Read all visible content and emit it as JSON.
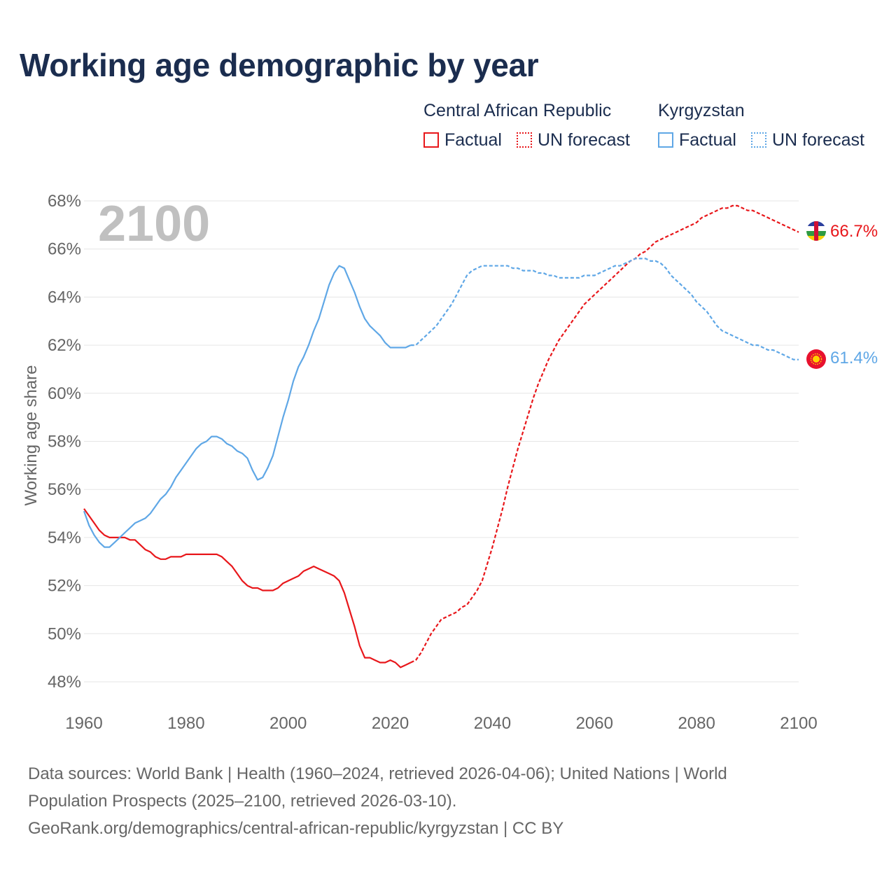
{
  "title": "Working age demographic by year",
  "legend": {
    "groups": [
      {
        "country": "Central African Republic",
        "color": "#e8171b",
        "factual_label": "Factual",
        "forecast_label": "UN forecast"
      },
      {
        "country": "Kyrgyzstan",
        "color": "#5fa7e6",
        "factual_label": "Factual",
        "forecast_label": "UN forecast"
      }
    ]
  },
  "year_overlay": "2100",
  "source": {
    "line1": "Data sources: World Bank | Health (1960–2024, retrieved 2026-04-06); United Nations | World",
    "line2": "Population Prospects (2025–2100, retrieved 2026-03-10).",
    "line3": "GeoRank.org/demographics/central-african-republic/kyrgyzstan | CC BY"
  },
  "chart_data": {
    "type": "line",
    "title": "Working age demographic by year",
    "xlabel": "",
    "ylabel": "Working age share",
    "xlim": [
      1960,
      2100
    ],
    "ylim": [
      47,
      69
    ],
    "x_ticks": [
      1960,
      1980,
      2000,
      2020,
      2040,
      2060,
      2080,
      2100
    ],
    "y_ticks": [
      48,
      50,
      52,
      54,
      56,
      58,
      60,
      62,
      64,
      66,
      68
    ],
    "x_tick_labels": [
      "1960",
      "1980",
      "2000",
      "2020",
      "2040",
      "2060",
      "2080",
      "2100"
    ],
    "y_tick_labels": [
      "48%",
      "50%",
      "52%",
      "54%",
      "56%",
      "58%",
      "60%",
      "62%",
      "64%",
      "66%",
      "68%"
    ],
    "factual_until": 2024,
    "series": [
      {
        "name": "Central African Republic",
        "color": "#e8171b",
        "end_label": "66.7%",
        "points": [
          [
            1960,
            55.2
          ],
          [
            1961,
            54.9
          ],
          [
            1962,
            54.6
          ],
          [
            1963,
            54.3
          ],
          [
            1964,
            54.1
          ],
          [
            1965,
            54.0
          ],
          [
            1966,
            54.0
          ],
          [
            1967,
            54.0
          ],
          [
            1968,
            54.0
          ],
          [
            1969,
            53.9
          ],
          [
            1970,
            53.9
          ],
          [
            1971,
            53.7
          ],
          [
            1972,
            53.5
          ],
          [
            1973,
            53.4
          ],
          [
            1974,
            53.2
          ],
          [
            1975,
            53.1
          ],
          [
            1976,
            53.1
          ],
          [
            1977,
            53.2
          ],
          [
            1978,
            53.2
          ],
          [
            1979,
            53.2
          ],
          [
            1980,
            53.3
          ],
          [
            1981,
            53.3
          ],
          [
            1982,
            53.3
          ],
          [
            1983,
            53.3
          ],
          [
            1984,
            53.3
          ],
          [
            1985,
            53.3
          ],
          [
            1986,
            53.3
          ],
          [
            1987,
            53.2
          ],
          [
            1988,
            53.0
          ],
          [
            1989,
            52.8
          ],
          [
            1990,
            52.5
          ],
          [
            1991,
            52.2
          ],
          [
            1992,
            52.0
          ],
          [
            1993,
            51.9
          ],
          [
            1994,
            51.9
          ],
          [
            1995,
            51.8
          ],
          [
            1996,
            51.8
          ],
          [
            1997,
            51.8
          ],
          [
            1998,
            51.9
          ],
          [
            1999,
            52.1
          ],
          [
            2000,
            52.2
          ],
          [
            2001,
            52.3
          ],
          [
            2002,
            52.4
          ],
          [
            2003,
            52.6
          ],
          [
            2004,
            52.7
          ],
          [
            2005,
            52.8
          ],
          [
            2006,
            52.7
          ],
          [
            2007,
            52.6
          ],
          [
            2008,
            52.5
          ],
          [
            2009,
            52.4
          ],
          [
            2010,
            52.2
          ],
          [
            2011,
            51.7
          ],
          [
            2012,
            51.0
          ],
          [
            2013,
            50.3
          ],
          [
            2014,
            49.5
          ],
          [
            2015,
            49.0
          ],
          [
            2016,
            49.0
          ],
          [
            2017,
            48.9
          ],
          [
            2018,
            48.8
          ],
          [
            2019,
            48.8
          ],
          [
            2020,
            48.9
          ],
          [
            2021,
            48.8
          ],
          [
            2022,
            48.6
          ],
          [
            2023,
            48.7
          ],
          [
            2024,
            48.8
          ],
          [
            2025,
            48.9
          ],
          [
            2026,
            49.2
          ],
          [
            2027,
            49.6
          ],
          [
            2028,
            50.0
          ],
          [
            2029,
            50.3
          ],
          [
            2030,
            50.6
          ],
          [
            2031,
            50.7
          ],
          [
            2032,
            50.8
          ],
          [
            2033,
            50.9
          ],
          [
            2034,
            51.1
          ],
          [
            2035,
            51.2
          ],
          [
            2036,
            51.5
          ],
          [
            2037,
            51.8
          ],
          [
            2038,
            52.2
          ],
          [
            2039,
            52.9
          ],
          [
            2040,
            53.6
          ],
          [
            2041,
            54.4
          ],
          [
            2042,
            55.2
          ],
          [
            2043,
            56.1
          ],
          [
            2044,
            56.9
          ],
          [
            2045,
            57.7
          ],
          [
            2046,
            58.4
          ],
          [
            2047,
            59.1
          ],
          [
            2048,
            59.8
          ],
          [
            2049,
            60.4
          ],
          [
            2050,
            60.9
          ],
          [
            2051,
            61.4
          ],
          [
            2052,
            61.8
          ],
          [
            2053,
            62.2
          ],
          [
            2054,
            62.5
          ],
          [
            2055,
            62.8
          ],
          [
            2056,
            63.1
          ],
          [
            2057,
            63.4
          ],
          [
            2058,
            63.7
          ],
          [
            2059,
            63.9
          ],
          [
            2060,
            64.1
          ],
          [
            2061,
            64.3
          ],
          [
            2062,
            64.5
          ],
          [
            2063,
            64.7
          ],
          [
            2064,
            64.9
          ],
          [
            2065,
            65.1
          ],
          [
            2066,
            65.3
          ],
          [
            2067,
            65.5
          ],
          [
            2068,
            65.6
          ],
          [
            2069,
            65.8
          ],
          [
            2070,
            65.9
          ],
          [
            2071,
            66.1
          ],
          [
            2072,
            66.3
          ],
          [
            2073,
            66.4
          ],
          [
            2074,
            66.5
          ],
          [
            2075,
            66.6
          ],
          [
            2076,
            66.7
          ],
          [
            2077,
            66.8
          ],
          [
            2078,
            66.9
          ],
          [
            2079,
            67.0
          ],
          [
            2080,
            67.1
          ],
          [
            2081,
            67.3
          ],
          [
            2082,
            67.4
          ],
          [
            2083,
            67.5
          ],
          [
            2084,
            67.6
          ],
          [
            2085,
            67.7
          ],
          [
            2086,
            67.7
          ],
          [
            2087,
            67.8
          ],
          [
            2088,
            67.8
          ],
          [
            2089,
            67.7
          ],
          [
            2090,
            67.6
          ],
          [
            2091,
            67.6
          ],
          [
            2092,
            67.5
          ],
          [
            2093,
            67.4
          ],
          [
            2094,
            67.3
          ],
          [
            2095,
            67.2
          ],
          [
            2096,
            67.1
          ],
          [
            2097,
            67.0
          ],
          [
            2098,
            66.9
          ],
          [
            2099,
            66.8
          ],
          [
            2100,
            66.7
          ]
        ]
      },
      {
        "name": "Kyrgyzstan",
        "color": "#5fa7e6",
        "end_label": "61.4%",
        "points": [
          [
            1960,
            55.1
          ],
          [
            1961,
            54.5
          ],
          [
            1962,
            54.1
          ],
          [
            1963,
            53.8
          ],
          [
            1964,
            53.6
          ],
          [
            1965,
            53.6
          ],
          [
            1966,
            53.8
          ],
          [
            1967,
            54.0
          ],
          [
            1968,
            54.2
          ],
          [
            1969,
            54.4
          ],
          [
            1970,
            54.6
          ],
          [
            1971,
            54.7
          ],
          [
            1972,
            54.8
          ],
          [
            1973,
            55.0
          ],
          [
            1974,
            55.3
          ],
          [
            1975,
            55.6
          ],
          [
            1976,
            55.8
          ],
          [
            1977,
            56.1
          ],
          [
            1978,
            56.5
          ],
          [
            1979,
            56.8
          ],
          [
            1980,
            57.1
          ],
          [
            1981,
            57.4
          ],
          [
            1982,
            57.7
          ],
          [
            1983,
            57.9
          ],
          [
            1984,
            58.0
          ],
          [
            1985,
            58.2
          ],
          [
            1986,
            58.2
          ],
          [
            1987,
            58.1
          ],
          [
            1988,
            57.9
          ],
          [
            1989,
            57.8
          ],
          [
            1990,
            57.6
          ],
          [
            1991,
            57.5
          ],
          [
            1992,
            57.3
          ],
          [
            1993,
            56.8
          ],
          [
            1994,
            56.4
          ],
          [
            1995,
            56.5
          ],
          [
            1996,
            56.9
          ],
          [
            1997,
            57.4
          ],
          [
            1998,
            58.2
          ],
          [
            1999,
            59.0
          ],
          [
            2000,
            59.7
          ],
          [
            2001,
            60.5
          ],
          [
            2002,
            61.1
          ],
          [
            2003,
            61.5
          ],
          [
            2004,
            62.0
          ],
          [
            2005,
            62.6
          ],
          [
            2006,
            63.1
          ],
          [
            2007,
            63.8
          ],
          [
            2008,
            64.5
          ],
          [
            2009,
            65.0
          ],
          [
            2010,
            65.3
          ],
          [
            2011,
            65.2
          ],
          [
            2012,
            64.7
          ],
          [
            2013,
            64.2
          ],
          [
            2014,
            63.6
          ],
          [
            2015,
            63.1
          ],
          [
            2016,
            62.8
          ],
          [
            2017,
            62.6
          ],
          [
            2018,
            62.4
          ],
          [
            2019,
            62.1
          ],
          [
            2020,
            61.9
          ],
          [
            2021,
            61.9
          ],
          [
            2022,
            61.9
          ],
          [
            2023,
            61.9
          ],
          [
            2024,
            62.0
          ],
          [
            2025,
            62.0
          ],
          [
            2026,
            62.2
          ],
          [
            2027,
            62.4
          ],
          [
            2028,
            62.6
          ],
          [
            2029,
            62.8
          ],
          [
            2030,
            63.1
          ],
          [
            2031,
            63.4
          ],
          [
            2032,
            63.7
          ],
          [
            2033,
            64.1
          ],
          [
            2034,
            64.5
          ],
          [
            2035,
            64.9
          ],
          [
            2036,
            65.1
          ],
          [
            2037,
            65.2
          ],
          [
            2038,
            65.3
          ],
          [
            2039,
            65.3
          ],
          [
            2040,
            65.3
          ],
          [
            2041,
            65.3
          ],
          [
            2042,
            65.3
          ],
          [
            2043,
            65.3
          ],
          [
            2044,
            65.2
          ],
          [
            2045,
            65.2
          ],
          [
            2046,
            65.1
          ],
          [
            2047,
            65.1
          ],
          [
            2048,
            65.1
          ],
          [
            2049,
            65.0
          ],
          [
            2050,
            65.0
          ],
          [
            2051,
            64.9
          ],
          [
            2052,
            64.9
          ],
          [
            2053,
            64.8
          ],
          [
            2054,
            64.8
          ],
          [
            2055,
            64.8
          ],
          [
            2056,
            64.8
          ],
          [
            2057,
            64.8
          ],
          [
            2058,
            64.9
          ],
          [
            2059,
            64.9
          ],
          [
            2060,
            64.9
          ],
          [
            2061,
            65.0
          ],
          [
            2062,
            65.1
          ],
          [
            2063,
            65.2
          ],
          [
            2064,
            65.3
          ],
          [
            2065,
            65.3
          ],
          [
            2066,
            65.4
          ],
          [
            2067,
            65.5
          ],
          [
            2068,
            65.6
          ],
          [
            2069,
            65.6
          ],
          [
            2070,
            65.6
          ],
          [
            2071,
            65.5
          ],
          [
            2072,
            65.5
          ],
          [
            2073,
            65.4
          ],
          [
            2074,
            65.2
          ],
          [
            2075,
            64.9
          ],
          [
            2076,
            64.7
          ],
          [
            2077,
            64.5
          ],
          [
            2078,
            64.3
          ],
          [
            2079,
            64.1
          ],
          [
            2080,
            63.8
          ],
          [
            2081,
            63.6
          ],
          [
            2082,
            63.4
          ],
          [
            2083,
            63.1
          ],
          [
            2084,
            62.8
          ],
          [
            2085,
            62.6
          ],
          [
            2086,
            62.5
          ],
          [
            2087,
            62.4
          ],
          [
            2088,
            62.3
          ],
          [
            2089,
            62.2
          ],
          [
            2090,
            62.1
          ],
          [
            2091,
            62.0
          ],
          [
            2092,
            62.0
          ],
          [
            2093,
            61.9
          ],
          [
            2094,
            61.8
          ],
          [
            2095,
            61.8
          ],
          [
            2096,
            61.7
          ],
          [
            2097,
            61.6
          ],
          [
            2098,
            61.5
          ],
          [
            2099,
            61.4
          ],
          [
            2100,
            61.4
          ]
        ]
      }
    ]
  }
}
